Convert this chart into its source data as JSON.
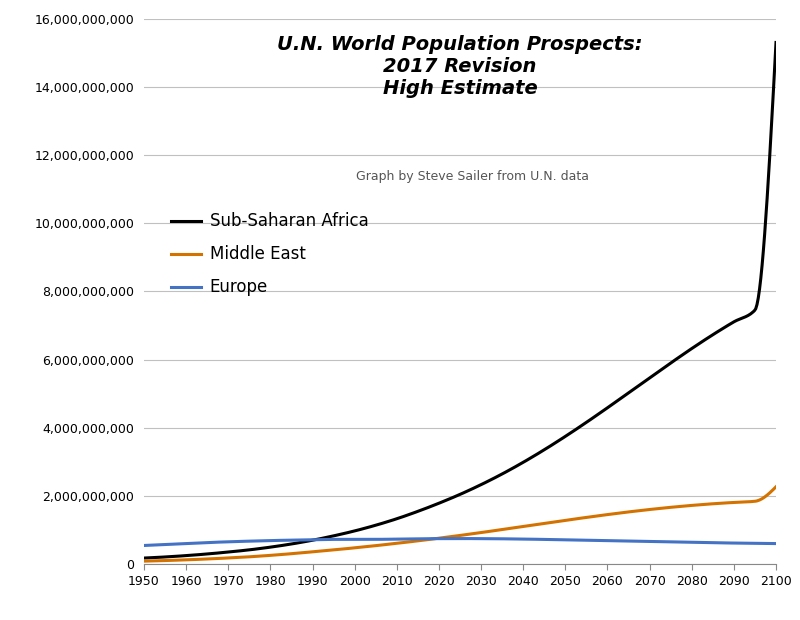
{
  "title_line1": "U.N. World Population Prospects:",
  "title_line2": "2017 Revision",
  "title_line3": "High Estimate",
  "subtitle": "Graph by Steve Sailer from U.N. data",
  "years": [
    1950,
    1955,
    1960,
    1965,
    1970,
    1975,
    1980,
    1985,
    1990,
    1995,
    2000,
    2005,
    2010,
    2015,
    2020,
    2025,
    2030,
    2035,
    2040,
    2045,
    2050,
    2055,
    2060,
    2065,
    2070,
    2075,
    2080,
    2085,
    2090,
    2095,
    2100
  ],
  "sub_saharan_africa": [
    180000000,
    212000000,
    252000000,
    300000000,
    357000000,
    421000000,
    500000000,
    593000000,
    703000000,
    831000000,
    976000000,
    1143000000,
    1333000000,
    1550000000,
    1788000000,
    2047000000,
    2333000000,
    2646000000,
    2988000000,
    3356000000,
    3748000000,
    4160000000,
    4587000000,
    5024000000,
    5463000000,
    5899000000,
    6324000000,
    6729000000,
    7107000000,
    7451000000,
    15300000000
  ],
  "middle_east": [
    90000000,
    107000000,
    128000000,
    153000000,
    183000000,
    217000000,
    259000000,
    308000000,
    363000000,
    419000000,
    480000000,
    544000000,
    613000000,
    685000000,
    762000000,
    843000000,
    928000000,
    1016000000,
    1106000000,
    1196000000,
    1285000000,
    1372000000,
    1455000000,
    1533000000,
    1604000000,
    1668000000,
    1724000000,
    1772000000,
    1811000000,
    1845000000,
    2270000000
  ],
  "europe": [
    549000000,
    576000000,
    605000000,
    634000000,
    657000000,
    676000000,
    693000000,
    706000000,
    721000000,
    728000000,
    726000000,
    728000000,
    737000000,
    746000000,
    750000000,
    752000000,
    750000000,
    745000000,
    737000000,
    727000000,
    715000000,
    703000000,
    690000000,
    677000000,
    665000000,
    653000000,
    641000000,
    630000000,
    620000000,
    612000000,
    605000000
  ],
  "africa_color": "#000000",
  "middle_east_color": "#d47200",
  "europe_color": "#4472c4",
  "line_width": 2.2,
  "xlim": [
    1950,
    2100
  ],
  "ylim": [
    0,
    16000000000
  ],
  "yticks": [
    0,
    2000000000,
    4000000000,
    6000000000,
    8000000000,
    10000000000,
    12000000000,
    14000000000,
    16000000000
  ],
  "xticks": [
    1950,
    1960,
    1970,
    1980,
    1990,
    2000,
    2010,
    2020,
    2030,
    2040,
    2050,
    2060,
    2070,
    2080,
    2090,
    2100
  ],
  "background_color": "#ffffff",
  "plot_bg_color": "#ffffff",
  "grid_color": "#c0c0c0",
  "title_fontsize": 14,
  "subtitle_fontsize": 9,
  "legend_fontsize": 12,
  "tick_fontsize": 9
}
